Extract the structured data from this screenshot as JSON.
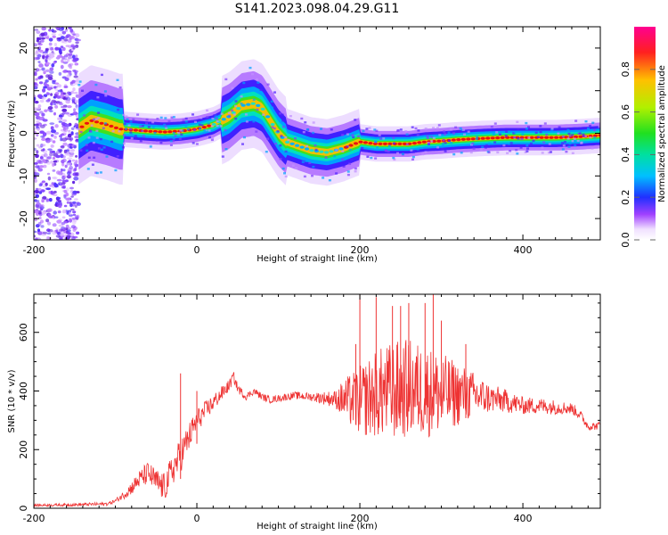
{
  "figure": {
    "title": "S141.2023.098.04.29.G11"
  },
  "chart_data": [
    {
      "type": "heatmap",
      "title": "S141.2023.098.04.29.G11",
      "xlabel": "Height of straight line (km)",
      "ylabel": "Frequency (Hz)",
      "xlim": [
        -200,
        495
      ],
      "ylim": [
        -25,
        25
      ],
      "x_ticks": [
        -200,
        0,
        200,
        400
      ],
      "y_ticks": [
        20,
        10,
        0,
        -10,
        -20
      ],
      "colorbar": {
        "label": "Normalized spectral amplitude",
        "range": [
          0,
          1
        ],
        "ticks": [
          0.0,
          0.2,
          0.4,
          0.6,
          0.8
        ],
        "tick_labels": [
          "0.0",
          "0.2",
          "0.4",
          "0.6",
          "0.8"
        ]
      },
      "ridge": {
        "x": [
          -145,
          -130,
          -110,
          -95,
          -80,
          -60,
          -40,
          -20,
          0,
          20,
          40,
          55,
          70,
          80,
          90,
          100,
          110,
          125,
          140,
          160,
          180,
          200,
          220,
          240,
          260,
          280,
          300,
          320,
          350,
          380,
          410,
          440,
          470,
          495
        ],
        "y": [
          1,
          3,
          2,
          1,
          0.8,
          0.5,
          0.3,
          0.5,
          1,
          2,
          4,
          6.5,
          7,
          6,
          3,
          0,
          -2,
          -3,
          -4,
          -4.5,
          -3.5,
          -2,
          -2.5,
          -2.5,
          -2.5,
          -2,
          -1.8,
          -1.5,
          -1.2,
          -1,
          -1,
          -1,
          -0.8,
          -0.5
        ]
      },
      "noise_region": [
        -200,
        -145
      ],
      "grid": false
    },
    {
      "type": "line",
      "xlabel": "Height of straight line (km)",
      "ylabel": "SNR (10 * v/v)",
      "xlim": [
        -200,
        495
      ],
      "ylim": [
        0,
        730
      ],
      "x_ticks": [
        -200,
        0,
        200,
        400
      ],
      "y_ticks": [
        0,
        200,
        400,
        600
      ],
      "color": "#ee3333",
      "envelope": {
        "x": [
          -200,
          -150,
          -110,
          -100,
          -90,
          -80,
          -70,
          -60,
          -50,
          -40,
          -30,
          -20,
          -10,
          0,
          10,
          20,
          30,
          40,
          45,
          50,
          60,
          70,
          80,
          90,
          100,
          120,
          140,
          160,
          180,
          200,
          220,
          240,
          260,
          280,
          300,
          320,
          340,
          360,
          380,
          400,
          420,
          440,
          460,
          470,
          480,
          490,
          495
        ],
        "y": [
          10,
          12,
          15,
          25,
          45,
          70,
          100,
          120,
          90,
          70,
          130,
          180,
          240,
          300,
          330,
          360,
          390,
          420,
          450,
          410,
          380,
          400,
          380,
          370,
          375,
          385,
          380,
          375,
          370,
          365,
          390,
          400,
          410,
          400,
          390,
          390,
          385,
          375,
          365,
          350,
          350,
          345,
          340,
          320,
          280,
          280,
          285
        ]
      },
      "noise": {
        "x": [
          -200,
          -100,
          -60,
          -20,
          0,
          20,
          40,
          60,
          100,
          140,
          170,
          180,
          200,
          220,
          240,
          260,
          280,
          300,
          320,
          340,
          360,
          400,
          440,
          480,
          495
        ],
        "y": [
          4,
          6,
          40,
          60,
          40,
          30,
          20,
          12,
          12,
          14,
          30,
          70,
          120,
          150,
          170,
          170,
          160,
          140,
          110,
          80,
          50,
          30,
          25,
          15,
          12
        ]
      },
      "spikes": [
        {
          "x": -20,
          "y": 460
        },
        {
          "x": 0,
          "y": 400
        },
        {
          "x": 195,
          "y": 560
        },
        {
          "x": 200,
          "y": 730
        },
        {
          "x": 220,
          "y": 720
        },
        {
          "x": 240,
          "y": 690
        },
        {
          "x": 250,
          "y": 690
        },
        {
          "x": 260,
          "y": 700
        },
        {
          "x": 280,
          "y": 700
        },
        {
          "x": 290,
          "y": 730
        },
        {
          "x": 300,
          "y": 640
        },
        {
          "x": 330,
          "y": 560
        }
      ],
      "grid": false
    }
  ]
}
